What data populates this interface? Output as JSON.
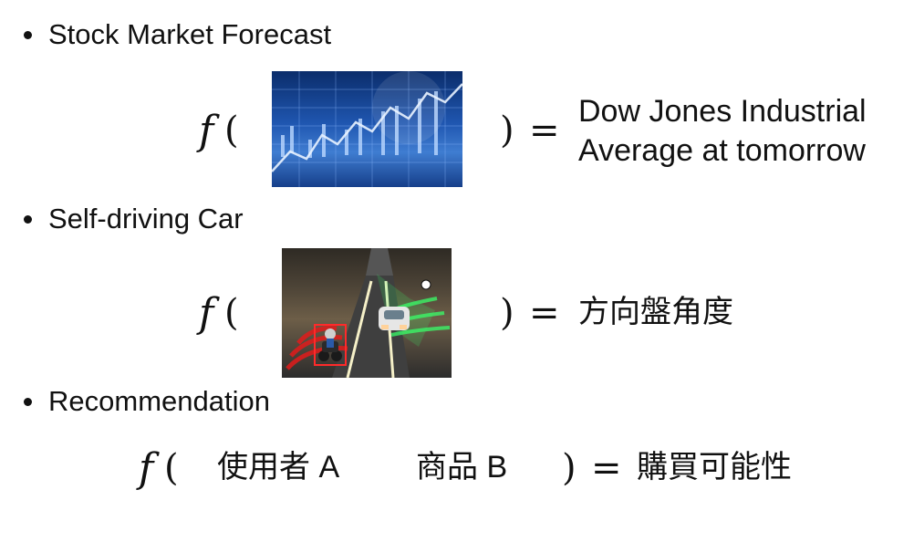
{
  "bullets": {
    "stock": "Stock Market Forecast",
    "car": "Self-driving Car",
    "rec": "Recommendation"
  },
  "symbols": {
    "f": "f",
    "open_paren": "(",
    "close_paren": ")",
    "equals": "="
  },
  "stock_output": {
    "line1": "Dow Jones Industrial",
    "line2": "Average at tomorrow"
  },
  "car_output": "方向盤角度",
  "rec_inputs": {
    "user": "使用者 A",
    "item": "商品 B"
  },
  "rec_output": "購買可能性",
  "colors": {
    "text": "#111111",
    "stock_image_base": "#1f56b0",
    "car_image_green": "#39ff6a",
    "car_image_red": "#e01b1b"
  }
}
